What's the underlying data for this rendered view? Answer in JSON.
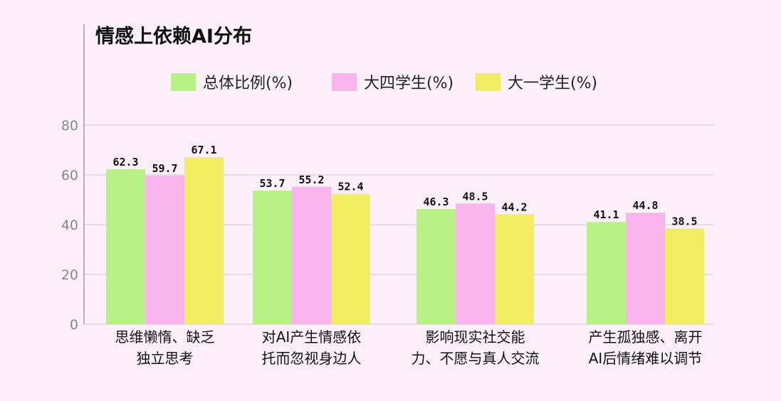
{
  "chart_data": {
    "type": "bar",
    "title": "情感上依赖AI分布",
    "xlabel": "",
    "ylabel": "",
    "ylim": [
      0,
      80
    ],
    "yticks": [
      0,
      20,
      40,
      60,
      80
    ],
    "grid": true,
    "legend_position": "top",
    "categories": [
      [
        "思维懒惰、缺乏",
        "独立思考"
      ],
      [
        "对AI产生情感依",
        "托而忽视身边人"
      ],
      [
        "影响现实社交能",
        "力、不愿与真人交流"
      ],
      [
        "产生孤独感、离开",
        "AI后情绪难以调节"
      ]
    ],
    "series": [
      {
        "name": "总体比例(%)",
        "color": "#b8f286",
        "values": [
          62.3,
          53.7,
          46.3,
          41.1
        ]
      },
      {
        "name": "大四学生(%)",
        "color": "#f9b4ee",
        "values": [
          59.7,
          55.2,
          48.5,
          44.8
        ]
      },
      {
        "name": "大一学生(%)",
        "color": "#f2ee62",
        "values": [
          67.1,
          52.4,
          44.2,
          38.5
        ]
      }
    ]
  }
}
